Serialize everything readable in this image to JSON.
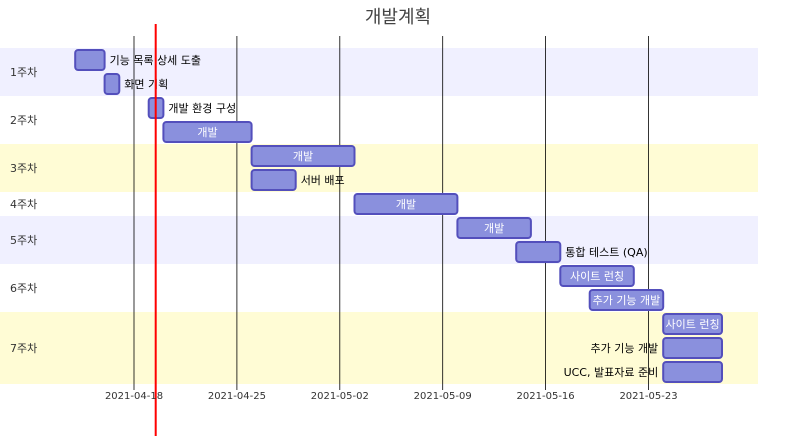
{
  "title": "개발계획",
  "chart_data": {
    "type": "gantt",
    "title": "개발계획",
    "today": "2021-04-19",
    "x_range": [
      "2021-04-10",
      "2021-05-31"
    ],
    "x_ticks": [
      "2021-04-18",
      "2021-04-25",
      "2021-05-02",
      "2021-05-09",
      "2021-05-16",
      "2021-05-23"
    ],
    "colors": {
      "task_fill": "#8a90dd",
      "task_stroke": "#534fbc",
      "today_line": "#ff0000",
      "section_band_a": "#f0f0ff",
      "section_band_b": "#ffffff",
      "section_band_c": "#fffcd5"
    },
    "sections": [
      {
        "label": "1주차",
        "band": "a",
        "tasks": [
          {
            "name": "기능 목록 상세 도출",
            "start": "2021-04-14",
            "end": "2021-04-16",
            "label_inside": false
          },
          {
            "name": "화면 기획",
            "start": "2021-04-16",
            "end": "2021-04-17",
            "label_inside": false
          }
        ]
      },
      {
        "label": "2주차",
        "band": "b",
        "tasks": [
          {
            "name": "개발 환경 구성",
            "start": "2021-04-19",
            "end": "2021-04-20",
            "label_inside": false
          },
          {
            "name": "개발",
            "start": "2021-04-20",
            "end": "2021-04-26",
            "label_inside": true
          }
        ]
      },
      {
        "label": "3주차",
        "band": "c",
        "tasks": [
          {
            "name": "개발",
            "start": "2021-04-26",
            "end": "2021-05-03",
            "label_inside": true
          },
          {
            "name": "서버 배포",
            "start": "2021-04-26",
            "end": "2021-04-29",
            "label_inside": false
          }
        ]
      },
      {
        "label": "4주차",
        "band": "b",
        "tasks": [
          {
            "name": "개발",
            "start": "2021-05-03",
            "end": "2021-05-10",
            "label_inside": true
          }
        ]
      },
      {
        "label": "5주차",
        "band": "a",
        "tasks": [
          {
            "name": "개발",
            "start": "2021-05-10",
            "end": "2021-05-15",
            "label_inside": true
          },
          {
            "name": "통합 테스트 (QA)",
            "start": "2021-05-14",
            "end": "2021-05-17",
            "label_inside": false
          }
        ]
      },
      {
        "label": "6주차",
        "band": "b",
        "tasks": [
          {
            "name": "사이트 런칭",
            "start": "2021-05-17",
            "end": "2021-05-22",
            "label_inside": true
          },
          {
            "name": "추가 기능 개발",
            "start": "2021-05-19",
            "end": "2021-05-24",
            "label_inside": true
          }
        ]
      },
      {
        "label": "7주차",
        "band": "c",
        "tasks": [
          {
            "name": "사이트 런칭",
            "start": "2021-05-24",
            "end": "2021-05-28",
            "label_inside": true
          },
          {
            "name": "추가 기능 개발",
            "start": "2021-05-24",
            "end": "2021-05-28",
            "label_inside": "left"
          },
          {
            "name": "UCC, 발표자료 준비",
            "start": "2021-05-24",
            "end": "2021-05-28",
            "label_inside": "left"
          }
        ]
      }
    ]
  }
}
